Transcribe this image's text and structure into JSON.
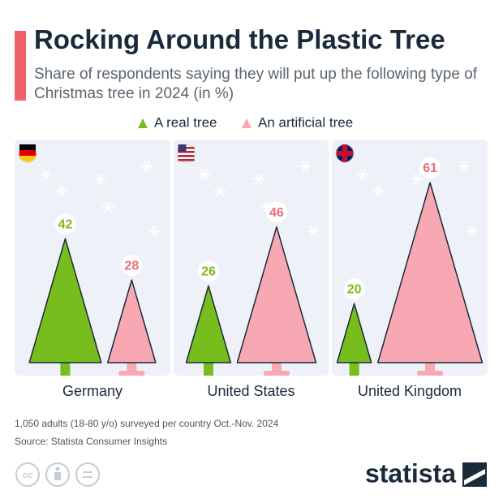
{
  "chart_data": {
    "type": "tree",
    "title": "Rocking Around the Plastic Tree",
    "subtitle": "Share of respondents saying they will put up the following type of Christmas tree in 2024 (in %)",
    "categories": [
      "Germany",
      "United States",
      "United Kingdom"
    ],
    "series": [
      {
        "name": "A real tree",
        "color": "#76bd1d",
        "values": [
          42,
          26,
          20
        ]
      },
      {
        "name": "An artificial tree",
        "color": "#f7a8b2",
        "label_color": "#ee6b78",
        "values": [
          28,
          46,
          61
        ]
      }
    ],
    "note": "1,050 adults (18-80 y/o) surveyed per country Oct.-Nov. 2024",
    "source": "Source: Statista Consumer Insights",
    "brand": "statista"
  }
}
